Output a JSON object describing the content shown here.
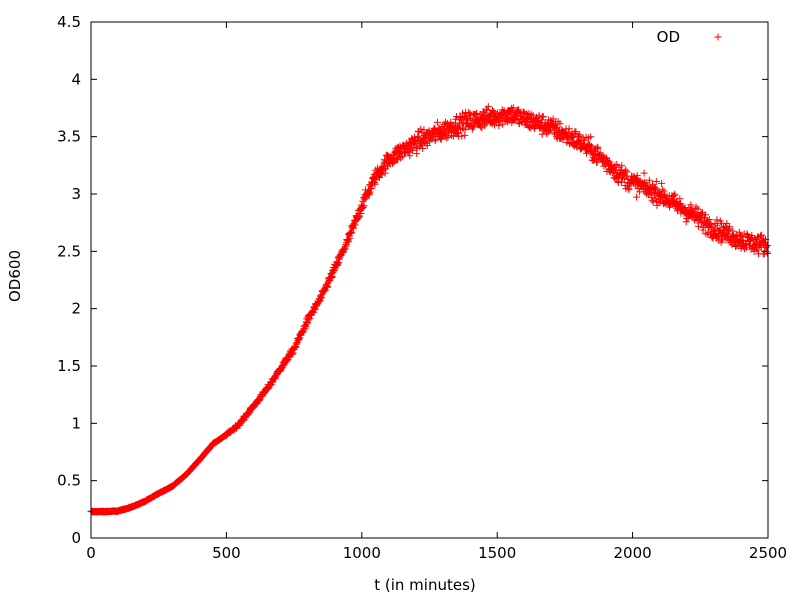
{
  "chart_data": {
    "type": "scatter",
    "title": "",
    "xlabel": "t (in minutes)",
    "ylabel": "OD600",
    "xlim": [
      0,
      2500
    ],
    "ylim": [
      0,
      4.5
    ],
    "x_ticks": [
      0,
      500,
      1000,
      1500,
      2000,
      2500
    ],
    "y_ticks": [
      0,
      0.5,
      1,
      1.5,
      2,
      2.5,
      3,
      3.5,
      4,
      4.5
    ],
    "grid": false,
    "legend_position": "top-right",
    "marker": "plus",
    "series": [
      {
        "name": "OD",
        "color": "#ff0000",
        "x": [
          0,
          50,
          100,
          150,
          200,
          250,
          300,
          350,
          400,
          450,
          500,
          550,
          600,
          650,
          700,
          750,
          800,
          850,
          900,
          950,
          1000,
          1050,
          1100,
          1150,
          1200,
          1250,
          1300,
          1350,
          1400,
          1450,
          1500,
          1550,
          1600,
          1650,
          1700,
          1750,
          1800,
          1850,
          1900,
          1950,
          2000,
          2050,
          2100,
          2150,
          2200,
          2250,
          2300,
          2350,
          2400,
          2450,
          2500
        ],
        "y": [
          0.23,
          0.23,
          0.235,
          0.27,
          0.32,
          0.39,
          0.45,
          0.55,
          0.68,
          0.82,
          0.9,
          1.0,
          1.15,
          1.3,
          1.48,
          1.65,
          1.9,
          2.1,
          2.35,
          2.6,
          2.9,
          3.15,
          3.3,
          3.38,
          3.45,
          3.5,
          3.55,
          3.6,
          3.63,
          3.66,
          3.68,
          3.7,
          3.65,
          3.62,
          3.58,
          3.52,
          3.46,
          3.38,
          3.28,
          3.18,
          3.1,
          3.05,
          3.0,
          2.92,
          2.85,
          2.78,
          2.7,
          2.65,
          2.6,
          2.57,
          2.55
        ]
      }
    ]
  }
}
